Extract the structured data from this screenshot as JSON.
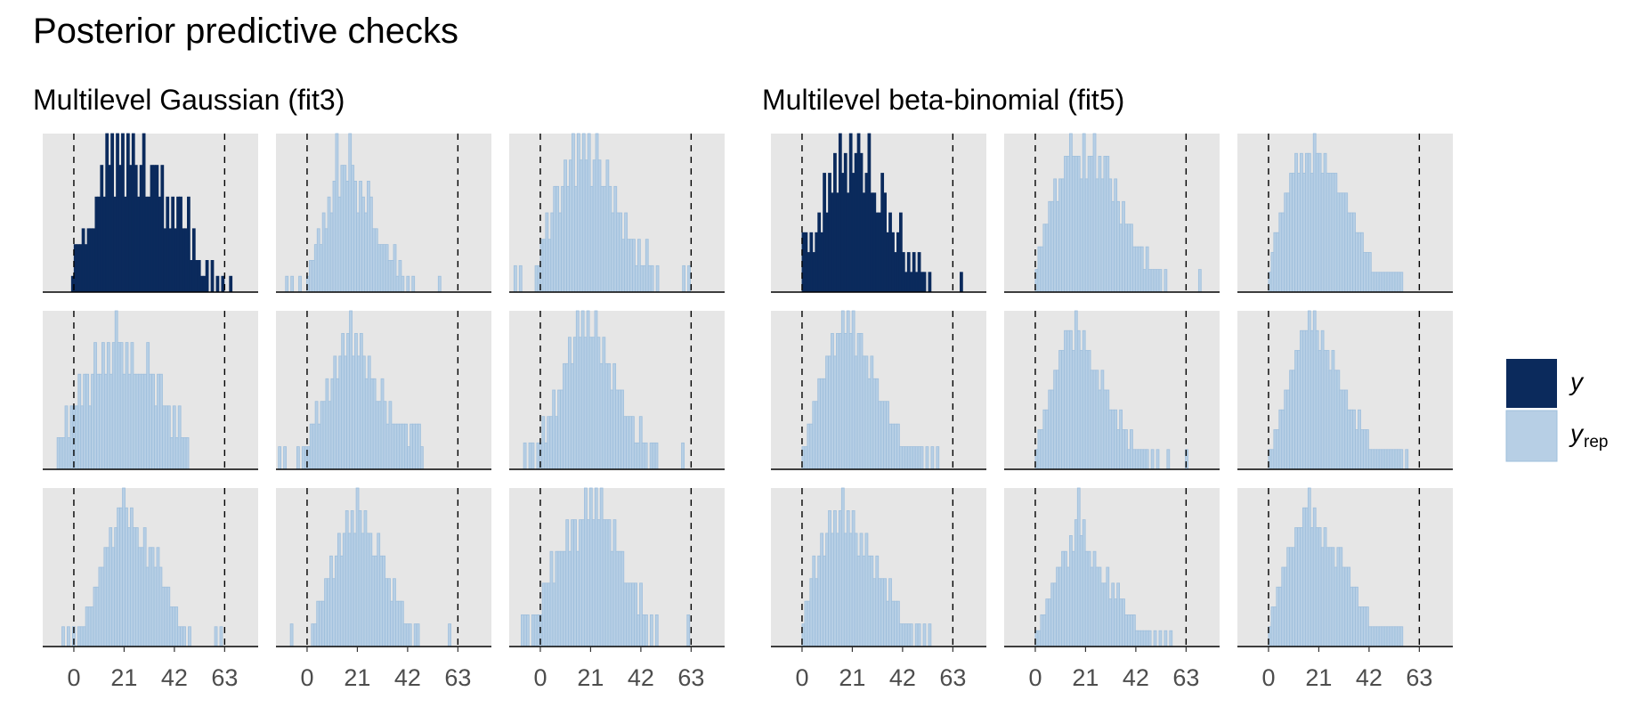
{
  "title": "Posterior predictive checks",
  "colors": {
    "y": "#0b2a5c",
    "y_rep": "#b7cfe5",
    "y_rep_stroke": "#9fbfdc",
    "panel_bg": "#e6e6e6",
    "vline": "#000000",
    "axis_text": "#4d4d4d"
  },
  "chart_data": [
    {
      "type": "histogram-grid",
      "subtitle": "Multilevel Gaussian (fit3)",
      "x_ticks": [
        0,
        21,
        42,
        63
      ],
      "xlim": [
        -13,
        77
      ],
      "ref_lines": [
        0,
        63
      ],
      "grid": "off",
      "legend": "right",
      "bin_width": 1.1,
      "panels": [
        {
          "series": "y",
          "start": -1,
          "counts": [
            1,
            3,
            3,
            3,
            4,
            3,
            4,
            4,
            4,
            6,
            6,
            8,
            6,
            10,
            8,
            10,
            6,
            10,
            8,
            10,
            6,
            10,
            8,
            10,
            8,
            6,
            8,
            10,
            6,
            6,
            8,
            8,
            8,
            6,
            8,
            4,
            6,
            4,
            6,
            4,
            6,
            6,
            4,
            4,
            6,
            2,
            4,
            2,
            2,
            1,
            1,
            2,
            0,
            2,
            0,
            1,
            0,
            1,
            0,
            0,
            1,
            0,
            0,
            0,
            0,
            0
          ]
        },
        {
          "series": "y_rep",
          "start": -9,
          "counts": [
            1,
            0,
            1,
            0,
            0,
            1,
            0,
            0,
            1,
            2,
            2,
            3,
            4,
            3,
            5,
            4,
            6,
            5,
            7,
            10,
            6,
            8,
            8,
            7,
            10,
            8,
            7,
            5,
            7,
            6,
            5,
            7,
            6,
            4,
            4,
            3,
            3,
            3,
            3,
            2,
            2,
            3,
            1,
            2,
            1,
            0,
            1,
            0,
            1,
            0,
            0,
            0,
            0,
            0,
            0,
            0,
            0,
            0,
            1
          ]
        },
        {
          "series": "y_rep",
          "start": -11,
          "counts": [
            1,
            0,
            1,
            0,
            0,
            0,
            0,
            0,
            1,
            1,
            2,
            2,
            3,
            2,
            3,
            4,
            4,
            3,
            4,
            5,
            4,
            5,
            6,
            4,
            6,
            5,
            6,
            5,
            6,
            4,
            5,
            6,
            5,
            4,
            4,
            5,
            4,
            3,
            4,
            3,
            3,
            2,
            3,
            2,
            2,
            2,
            1,
            2,
            1,
            1,
            2,
            1,
            1,
            0,
            1,
            0,
            0,
            0,
            0,
            0,
            0,
            0,
            0,
            0,
            1,
            0,
            1
          ]
        },
        {
          "series": "y_rep",
          "start": -7,
          "counts": [
            1,
            1,
            1,
            2,
            1,
            2,
            2,
            2,
            3,
            2,
            3,
            3,
            2,
            3,
            4,
            3,
            3,
            4,
            3,
            4,
            3,
            4,
            5,
            4,
            4,
            3,
            4,
            3,
            4,
            3,
            3,
            3,
            3,
            3,
            4,
            3,
            3,
            2,
            3,
            3,
            2,
            2,
            2,
            1,
            2,
            1,
            2,
            1,
            1,
            1
          ]
        },
        {
          "series": "y_rep",
          "start": -12,
          "counts": [
            1,
            0,
            1,
            0,
            0,
            0,
            0,
            1,
            0,
            1,
            1,
            1,
            2,
            2,
            3,
            2,
            3,
            3,
            4,
            3,
            4,
            5,
            4,
            5,
            6,
            5,
            6,
            7,
            5,
            6,
            5,
            6,
            5,
            4,
            5,
            4,
            4,
            3,
            3,
            4,
            3,
            2,
            3,
            2,
            2,
            2,
            2,
            2,
            2,
            1,
            2,
            2,
            2,
            2,
            1
          ]
        },
        {
          "series": "y_rep",
          "start": -7,
          "counts": [
            1,
            0,
            1,
            1,
            0,
            1,
            1,
            2,
            1,
            2,
            2,
            3,
            2,
            3,
            3,
            4,
            4,
            5,
            4,
            5,
            6,
            5,
            6,
            5,
            6,
            5,
            5,
            6,
            5,
            4,
            5,
            4,
            4,
            3,
            4,
            3,
            3,
            3,
            2,
            2,
            2,
            2,
            1,
            1,
            2,
            1,
            1,
            0,
            1,
            1,
            1,
            0,
            0,
            0,
            0,
            0,
            0,
            0,
            0,
            0,
            1
          ]
        },
        {
          "series": "y_rep",
          "start": -5,
          "counts": [
            1,
            0,
            1,
            0,
            1,
            0,
            1,
            1,
            1,
            2,
            2,
            2,
            3,
            3,
            4,
            4,
            5,
            5,
            6,
            5,
            6,
            7,
            7,
            8,
            7,
            6,
            7,
            6,
            6,
            5,
            5,
            6,
            4,
            5,
            5,
            4,
            5,
            4,
            3,
            3,
            3,
            2,
            2,
            2,
            1,
            1,
            1,
            0,
            1,
            0,
            0,
            0,
            0,
            0,
            0,
            0,
            0,
            0,
            1,
            0,
            1
          ]
        },
        {
          "series": "y_rep",
          "start": -7,
          "counts": [
            1,
            0,
            0,
            0,
            0,
            0,
            0,
            0,
            1,
            1,
            2,
            2,
            2,
            3,
            3,
            4,
            3,
            4,
            5,
            4,
            5,
            6,
            5,
            6,
            5,
            7,
            6,
            5,
            6,
            5,
            5,
            4,
            4,
            5,
            4,
            4,
            3,
            3,
            2,
            3,
            2,
            2,
            2,
            1,
            1,
            1,
            0,
            1,
            1,
            0,
            0,
            0,
            0,
            0,
            0,
            0,
            0,
            0,
            0,
            0,
            1
          ]
        },
        {
          "series": "y_rep",
          "start": -8,
          "counts": [
            1,
            1,
            1,
            0,
            1,
            1,
            1,
            1,
            2,
            2,
            2,
            3,
            2,
            3,
            3,
            3,
            3,
            4,
            3,
            4,
            4,
            3,
            4,
            4,
            5,
            4,
            5,
            4,
            5,
            4,
            5,
            4,
            4,
            4,
            3,
            4,
            3,
            3,
            3,
            2,
            2,
            2,
            2,
            2,
            1,
            2,
            1,
            1,
            0,
            1,
            0,
            1,
            0,
            0,
            0,
            0,
            0,
            0,
            0,
            0,
            0,
            0,
            0,
            1
          ]
        }
      ]
    },
    {
      "type": "histogram-grid",
      "subtitle": "Multilevel beta-binomial (fit5)",
      "x_ticks": [
        0,
        21,
        42,
        63
      ],
      "xlim": [
        -13,
        77
      ],
      "ref_lines": [
        0,
        63
      ],
      "grid": "off",
      "legend": "right",
      "bin_width": 1.1,
      "panels": [
        {
          "series": "y",
          "start": 0,
          "counts": [
            3,
            3,
            2,
            3,
            2,
            3,
            4,
            3,
            6,
            4,
            6,
            5,
            7,
            5,
            8,
            6,
            7,
            5,
            8,
            6,
            7,
            8,
            7,
            5,
            6,
            8,
            5,
            5,
            4,
            4,
            6,
            5,
            3,
            4,
            3,
            2,
            3,
            4,
            2,
            1,
            2,
            1,
            2,
            1,
            2,
            1,
            1,
            0,
            1,
            0,
            0,
            0,
            0,
            0,
            0,
            0,
            0,
            0,
            0,
            0,
            1
          ]
        },
        {
          "series": "y_rep",
          "start": 0,
          "counts": [
            1,
            2,
            2,
            3,
            3,
            4,
            4,
            5,
            4,
            5,
            5,
            6,
            6,
            7,
            6,
            6,
            6,
            5,
            7,
            5,
            6,
            6,
            7,
            5,
            6,
            5,
            6,
            6,
            5,
            4,
            5,
            4,
            3,
            4,
            3,
            3,
            3,
            2,
            2,
            2,
            2,
            1,
            2,
            1,
            1,
            1,
            1,
            1,
            0,
            1,
            0,
            0,
            0,
            0,
            0,
            0,
            0,
            0,
            0,
            0,
            0,
            0,
            1
          ]
        },
        {
          "series": "y_rep",
          "start": 0,
          "counts": [
            1,
            2,
            3,
            3,
            4,
            4,
            5,
            5,
            6,
            6,
            7,
            6,
            7,
            6,
            7,
            7,
            6,
            8,
            7,
            7,
            6,
            7,
            6,
            6,
            6,
            6,
            5,
            5,
            5,
            5,
            4,
            4,
            4,
            3,
            3,
            3,
            2,
            2,
            2,
            1,
            1,
            1,
            1,
            1,
            1,
            1,
            1,
            1,
            1,
            1,
            1
          ]
        },
        {
          "series": "y_rep",
          "start": 0,
          "counts": [
            1,
            1,
            2,
            2,
            3,
            3,
            4,
            4,
            4,
            5,
            5,
            6,
            5,
            6,
            6,
            7,
            6,
            7,
            6,
            7,
            5,
            6,
            6,
            5,
            5,
            4,
            5,
            4,
            4,
            3,
            3,
            3,
            3,
            2,
            2,
            2,
            2,
            1,
            1,
            1,
            1,
            1,
            1,
            1,
            1,
            1,
            0,
            1,
            0,
            1,
            0,
            1
          ]
        },
        {
          "series": "y_rep",
          "start": 0,
          "counts": [
            1,
            2,
            2,
            3,
            3,
            4,
            4,
            5,
            5,
            6,
            6,
            7,
            7,
            7,
            6,
            8,
            7,
            6,
            7,
            6,
            6,
            5,
            5,
            5,
            4,
            5,
            4,
            4,
            3,
            3,
            3,
            2,
            3,
            2,
            2,
            1,
            2,
            1,
            1,
            1,
            1,
            1,
            1,
            0,
            1,
            0,
            1,
            0,
            0,
            0,
            1,
            0,
            0,
            0,
            0,
            0,
            0,
            1
          ]
        },
        {
          "series": "y_rep",
          "start": 0,
          "counts": [
            1,
            1,
            2,
            2,
            3,
            3,
            4,
            4,
            5,
            5,
            6,
            6,
            7,
            7,
            7,
            8,
            7,
            8,
            7,
            6,
            7,
            6,
            6,
            5,
            6,
            5,
            5,
            4,
            4,
            4,
            3,
            3,
            3,
            2,
            3,
            2,
            2,
            2,
            1,
            1,
            1,
            1,
            1,
            1,
            1,
            1,
            1,
            1,
            1,
            1,
            1,
            0,
            1
          ]
        },
        {
          "series": "y_rep",
          "start": 0,
          "counts": [
            1,
            2,
            2,
            3,
            4,
            3,
            4,
            5,
            4,
            5,
            6,
            5,
            6,
            5,
            6,
            7,
            5,
            6,
            5,
            6,
            5,
            4,
            5,
            4,
            5,
            4,
            4,
            3,
            4,
            3,
            3,
            3,
            2,
            3,
            2,
            2,
            2,
            1,
            1,
            1,
            1,
            1,
            0,
            1,
            1,
            0,
            1,
            0,
            1
          ]
        },
        {
          "series": "y_rep",
          "start": 0,
          "counts": [
            1,
            1,
            2,
            2,
            3,
            3,
            4,
            4,
            5,
            5,
            6,
            6,
            5,
            7,
            6,
            8,
            10,
            7,
            8,
            6,
            6,
            5,
            6,
            5,
            5,
            4,
            4,
            5,
            3,
            4,
            3,
            4,
            3,
            3,
            2,
            2,
            2,
            2,
            1,
            1,
            1,
            1,
            1,
            1,
            0,
            1,
            0,
            1,
            0,
            1,
            0,
            1
          ]
        },
        {
          "series": "y_rep",
          "start": 0,
          "counts": [
            1,
            2,
            2,
            3,
            3,
            4,
            4,
            5,
            5,
            5,
            6,
            6,
            6,
            7,
            7,
            8,
            6,
            7,
            6,
            6,
            5,
            6,
            5,
            5,
            5,
            4,
            5,
            5,
            4,
            4,
            4,
            3,
            3,
            3,
            2,
            2,
            2,
            2,
            1,
            1,
            1,
            1,
            1,
            1,
            1,
            1,
            1,
            1,
            1,
            1,
            1
          ]
        }
      ]
    }
  ],
  "legend": {
    "y_label": "y",
    "y_rep_label": "y",
    "y_rep_subscript": "rep"
  }
}
